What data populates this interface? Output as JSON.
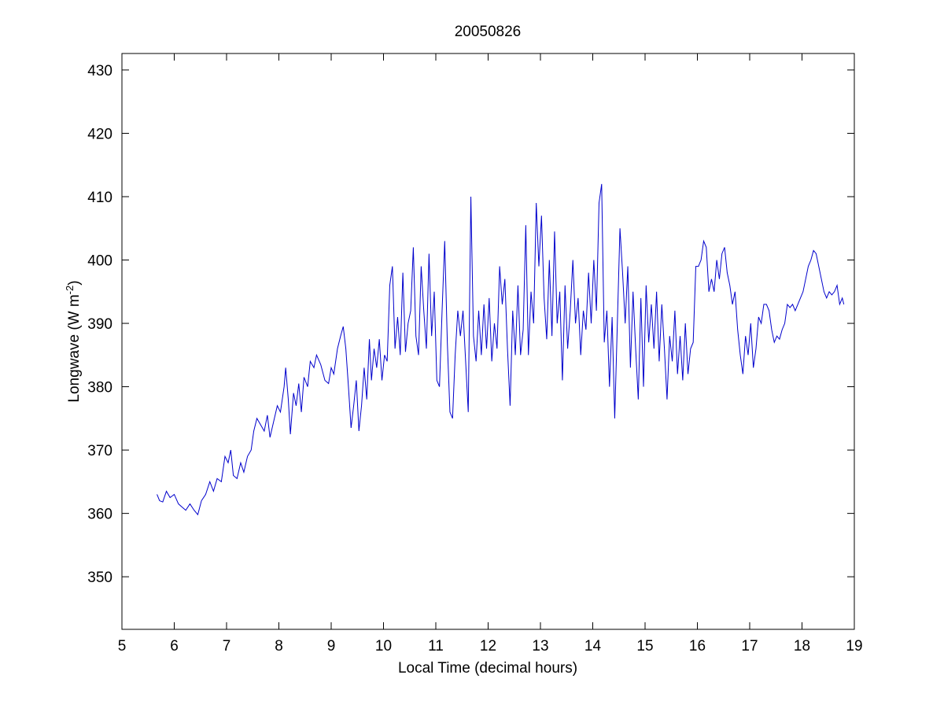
{
  "chart_data": {
    "type": "line",
    "title": "20050826",
    "xlabel": "Local Time (decimal hours)",
    "ylabel": "Longwave (W m",
    "ylabel_sup": "-2",
    "ylabel_end": ")",
    "xlim": [
      5,
      19
    ],
    "xticks": [
      5,
      6,
      7,
      8,
      9,
      10,
      11,
      12,
      13,
      14,
      15,
      16,
      17,
      18,
      19
    ],
    "ylim": [
      341.7,
      432.6
    ],
    "yticks": [
      350,
      360,
      370,
      380,
      390,
      400,
      410,
      420,
      430
    ],
    "grid": false,
    "series": [
      {
        "color": "#0000cc",
        "x": [
          5.67,
          5.72,
          5.78,
          5.85,
          5.92,
          6.0,
          6.08,
          6.15,
          6.22,
          6.3,
          6.38,
          6.45,
          6.52,
          6.6,
          6.68,
          6.75,
          6.82,
          6.9,
          6.97,
          7.03,
          7.08,
          7.13,
          7.2,
          7.27,
          7.33,
          7.4,
          7.47,
          7.52,
          7.58,
          7.65,
          7.72,
          7.78,
          7.83,
          7.9,
          7.97,
          8.03,
          8.1,
          8.13,
          8.18,
          8.22,
          8.28,
          8.33,
          8.38,
          8.43,
          8.48,
          8.55,
          8.6,
          8.67,
          8.72,
          8.8,
          8.88,
          8.95,
          9.0,
          9.05,
          9.12,
          9.18,
          9.23,
          9.28,
          9.33,
          9.38,
          9.43,
          9.48,
          9.53,
          9.58,
          9.63,
          9.68,
          9.73,
          9.77,
          9.82,
          9.87,
          9.92,
          9.97,
          10.02,
          10.07,
          10.12,
          10.17,
          10.22,
          10.27,
          10.32,
          10.37,
          10.42,
          10.47,
          10.52,
          10.57,
          10.62,
          10.67,
          10.72,
          10.77,
          10.82,
          10.87,
          10.92,
          10.97,
          11.02,
          11.07,
          11.12,
          11.17,
          11.22,
          11.27,
          11.32,
          11.37,
          11.42,
          11.47,
          11.52,
          11.57,
          11.62,
          11.67,
          11.72,
          11.77,
          11.82,
          11.87,
          11.92,
          11.97,
          12.02,
          12.07,
          12.12,
          12.17,
          12.22,
          12.27,
          12.32,
          12.37,
          12.42,
          12.47,
          12.52,
          12.57,
          12.62,
          12.67,
          12.72,
          12.77,
          12.82,
          12.87,
          12.92,
          12.97,
          13.02,
          13.07,
          13.12,
          13.17,
          13.22,
          13.27,
          13.32,
          13.37,
          13.42,
          13.47,
          13.52,
          13.57,
          13.62,
          13.67,
          13.72,
          13.77,
          13.82,
          13.87,
          13.92,
          13.97,
          14.02,
          14.07,
          14.12,
          14.17,
          14.22,
          14.27,
          14.32,
          14.37,
          14.42,
          14.47,
          14.52,
          14.57,
          14.62,
          14.67,
          14.72,
          14.77,
          14.82,
          14.87,
          14.92,
          14.97,
          15.02,
          15.07,
          15.12,
          15.17,
          15.22,
          15.27,
          15.32,
          15.37,
          15.42,
          15.47,
          15.52,
          15.57,
          15.62,
          15.67,
          15.72,
          15.77,
          15.82,
          15.87,
          15.92,
          15.97,
          16.02,
          16.07,
          16.12,
          16.17,
          16.22,
          16.27,
          16.32,
          16.37,
          16.42,
          16.47,
          16.52,
          16.57,
          16.62,
          16.67,
          16.72,
          16.77,
          16.82,
          16.87,
          16.92,
          16.97,
          17.02,
          17.07,
          17.12,
          17.17,
          17.22,
          17.27,
          17.32,
          17.37,
          17.42,
          17.47,
          17.52,
          17.57,
          17.62,
          17.67,
          17.72,
          17.77,
          17.82,
          17.87,
          17.92,
          17.97,
          18.02,
          18.07,
          18.12,
          18.17,
          18.22,
          18.27,
          18.32,
          18.37,
          18.42,
          18.47,
          18.52,
          18.57,
          18.62,
          18.67,
          18.72,
          18.77,
          18.8
        ],
        "values": [
          363,
          362,
          361.8,
          363.5,
          362.5,
          363,
          361.5,
          361,
          360.5,
          361.5,
          360.5,
          359.8,
          362,
          363,
          365,
          363.5,
          365.5,
          365,
          369,
          368,
          370,
          366,
          365.5,
          368,
          366.5,
          369,
          370,
          373,
          375,
          374,
          373,
          375.5,
          372,
          374.5,
          377,
          376,
          380,
          383,
          378,
          372.5,
          379,
          377,
          380.5,
          376,
          381.5,
          380,
          384,
          383,
          385,
          383.5,
          381,
          380.5,
          383,
          382,
          386,
          388,
          389.5,
          386,
          380,
          373.5,
          377,
          381,
          373,
          377,
          383,
          378,
          387.5,
          381,
          386,
          383,
          387.5,
          381,
          385,
          384,
          396,
          399,
          386,
          391,
          385,
          398,
          385.5,
          390,
          392,
          402,
          388,
          385,
          399,
          392,
          386,
          401,
          388,
          395,
          381,
          380,
          392,
          403,
          387,
          376,
          375,
          385,
          392,
          388,
          392,
          384,
          376,
          410,
          388,
          384,
          392,
          385,
          393,
          386,
          394,
          384,
          390,
          386,
          399,
          393,
          397,
          386,
          377,
          392,
          385,
          396,
          385,
          389,
          405.5,
          385,
          395,
          390,
          409,
          399,
          407,
          394,
          387.5,
          400,
          388,
          404.5,
          390,
          395,
          381,
          396,
          386,
          392,
          400,
          390,
          394,
          385,
          392,
          389,
          398,
          390,
          400,
          392,
          409,
          412,
          387,
          392,
          380,
          391,
          375,
          390,
          405,
          398,
          390,
          399,
          383,
          395,
          386,
          378,
          394,
          380,
          396,
          387,
          393,
          386,
          395,
          384,
          393,
          386,
          378,
          388,
          384,
          392,
          382,
          388,
          381,
          390,
          382,
          386,
          387,
          399,
          399,
          400,
          403,
          402,
          395,
          397,
          395,
          400,
          397,
          401,
          402,
          398,
          396,
          393,
          395,
          389,
          385,
          382,
          388,
          385,
          390,
          383,
          386,
          391,
          390,
          393,
          393,
          392,
          389,
          387,
          388,
          387.5,
          389,
          390,
          393,
          392.5,
          393,
          392,
          393,
          394,
          395,
          397,
          399,
          400,
          401.5,
          401,
          399,
          397,
          395,
          394,
          395,
          394.5,
          395,
          396,
          393,
          394,
          393
        ]
      }
    ]
  }
}
